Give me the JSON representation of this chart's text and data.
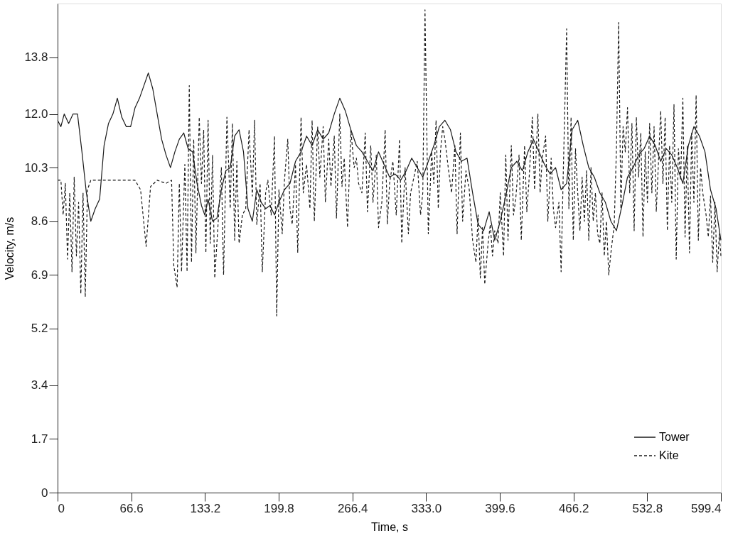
{
  "chart_data": {
    "type": "line",
    "xlabel": "Time, s",
    "ylabel": "Velocity, m/s",
    "xlim": [
      0,
      599.4
    ],
    "xticks": [
      0,
      66.6,
      133.2,
      199.8,
      266.4,
      {
        "value": 333.0,
        "label": "333.0"
      },
      399.6,
      466.2,
      532.8,
      599.4
    ],
    "ylim": [
      0,
      15.5
    ],
    "yticks": [
      0,
      1.7,
      3.4,
      5.2,
      6.9,
      8.6,
      10.3,
      {
        "value": 12.0,
        "label": "12.0"
      },
      13.8
    ],
    "grid": false,
    "legend": "bottom right",
    "marker": "none",
    "series": [
      {
        "name": "Tower",
        "color": "#1a1a1a",
        "line_style": "solid",
        "x": [
          0,
          3,
          6,
          10,
          14,
          18,
          22,
          26,
          30,
          34,
          38,
          42,
          46,
          50,
          54,
          58,
          62,
          66,
          70,
          74,
          78,
          82,
          86,
          90,
          94,
          98,
          102,
          106,
          110,
          114,
          118,
          122,
          126,
          130,
          133,
          136,
          140,
          144,
          148,
          152,
          156,
          160,
          164,
          168,
          172,
          176,
          180,
          184,
          188,
          192,
          196,
          200,
          205,
          210,
          215,
          220,
          225,
          230,
          235,
          240,
          245,
          250,
          255,
          260,
          265,
          270,
          275,
          280,
          285,
          290,
          295,
          300,
          305,
          310,
          315,
          320,
          325,
          330,
          335,
          340,
          345,
          350,
          355,
          360,
          365,
          370,
          375,
          380,
          385,
          390,
          395,
          400,
          405,
          410,
          415,
          420,
          425,
          430,
          435,
          440,
          445,
          450,
          455,
          460,
          465,
          470,
          475,
          480,
          485,
          490,
          495,
          500,
          505,
          510,
          515,
          520,
          525,
          530,
          535,
          540,
          545,
          550,
          555,
          560,
          565,
          570,
          575,
          580,
          585,
          590,
          595,
          599.4
        ],
        "values": [
          11.8,
          11.6,
          12.0,
          11.7,
          12.0,
          12.0,
          10.8,
          9.5,
          8.6,
          9.0,
          9.3,
          11.0,
          11.7,
          12.0,
          12.5,
          11.9,
          11.6,
          11.6,
          12.2,
          12.5,
          12.9,
          13.3,
          12.8,
          12.0,
          11.2,
          10.7,
          10.3,
          10.8,
          11.2,
          11.4,
          10.9,
          10.8,
          9.8,
          9.1,
          8.8,
          9.3,
          8.6,
          8.7,
          9.6,
          10.2,
          10.3,
          11.3,
          11.5,
          10.8,
          9.0,
          8.6,
          9.6,
          9.2,
          9.0,
          9.1,
          8.8,
          9.2,
          9.6,
          9.8,
          10.5,
          10.8,
          11.3,
          11.0,
          11.5,
          11.2,
          11.4,
          12.0,
          12.5,
          12.1,
          11.5,
          11.0,
          10.8,
          10.5,
          10.2,
          10.8,
          10.4,
          10.0,
          10.1,
          9.9,
          10.2,
          10.6,
          10.3,
          10.0,
          10.5,
          11.0,
          11.6,
          11.8,
          11.5,
          10.8,
          10.5,
          10.6,
          9.5,
          8.5,
          8.3,
          8.9,
          8.0,
          8.6,
          9.4,
          10.3,
          10.5,
          10.2,
          10.8,
          11.2,
          10.8,
          10.4,
          10.1,
          10.3,
          9.6,
          9.8,
          11.5,
          11.8,
          11.0,
          10.3,
          10.0,
          9.5,
          9.2,
          8.6,
          8.3,
          9.1,
          10.0,
          10.3,
          10.7,
          10.9,
          11.3,
          11.0,
          10.5,
          10.9,
          10.7,
          10.3,
          9.8,
          11.0,
          11.6,
          11.3,
          10.8,
          9.6,
          9.0,
          8.0
        ]
      },
      {
        "name": "Kite",
        "color": "#1a1a1a",
        "line_style": "dashed",
        "x": [
          0,
          3,
          5,
          7,
          9,
          11,
          13,
          15,
          17,
          19,
          21,
          23,
          25,
          27,
          30,
          40,
          50,
          60,
          70,
          75,
          80,
          84,
          90,
          98,
          103,
          105,
          108,
          110,
          112,
          115,
          117,
          119,
          121,
          123,
          125,
          128,
          130,
          132,
          134,
          136,
          138,
          140,
          142,
          145,
          148,
          150,
          153,
          156,
          158,
          160,
          162,
          164,
          167,
          170,
          173,
          176,
          178,
          180,
          183,
          185,
          188,
          190,
          193,
          196,
          198,
          200,
          203,
          205,
          208,
          210,
          212,
          215,
          217,
          220,
          222,
          225,
          228,
          230,
          232,
          235,
          237,
          240,
          242,
          245,
          247,
          250,
          252,
          255,
          257,
          259,
          262,
          265,
          268,
          270,
          272,
          275,
          278,
          280,
          283,
          285,
          288,
          290,
          293,
          296,
          298,
          300,
          303,
          306,
          309,
          311,
          314,
          317,
          319,
          322,
          325,
          328,
          330,
          332,
          335,
          338,
          340,
          342,
          344,
          346,
          348,
          350,
          353,
          356,
          359,
          361,
          364,
          366,
          369,
          372,
          375,
          378,
          380,
          382,
          384,
          386,
          389,
          391,
          393,
          395,
          398,
          400,
          403,
          405,
          407,
          410,
          412,
          414,
          417,
          419,
          422,
          424,
          426,
          429,
          431,
          434,
          436,
          438,
          441,
          443,
          446,
          448,
          450,
          453,
          455,
          457,
          460,
          462,
          464,
          466,
          468,
          470,
          472,
          474,
          476,
          478,
          480,
          482,
          484,
          486,
          488,
          490,
          492,
          494,
          496,
          498,
          500,
          503,
          505,
          507,
          509,
          511,
          513,
          515,
          517,
          519,
          521,
          523,
          525,
          527,
          529,
          531,
          533,
          535,
          537,
          539,
          541,
          543,
          545,
          547,
          549,
          551,
          553,
          555,
          557,
          559,
          561,
          563,
          565,
          567,
          569,
          571,
          573,
          575,
          577,
          579,
          581,
          583,
          586,
          588,
          590,
          592,
          594,
          596,
          598,
          599.4
        ],
        "values": [
          9.9,
          9.9,
          8.8,
          9.8,
          7.4,
          9.5,
          7.0,
          10.0,
          7.5,
          9.2,
          6.3,
          9.5,
          6.2,
          9.6,
          9.9,
          9.9,
          9.9,
          9.9,
          9.9,
          9.6,
          7.8,
          9.7,
          9.9,
          9.8,
          9.9,
          7.2,
          6.5,
          9.8,
          7.0,
          10.4,
          7.0,
          12.9,
          7.3,
          11.2,
          7.6,
          11.9,
          9.8,
          11.5,
          7.6,
          11.8,
          7.9,
          10.7,
          6.8,
          8.5,
          10.3,
          6.9,
          11.9,
          9.0,
          11.7,
          8.0,
          10.5,
          7.9,
          8.8,
          9.0,
          11.5,
          9.4,
          11.8,
          8.5,
          9.8,
          7.0,
          9.5,
          9.9,
          8.8,
          11.3,
          5.6,
          9.6,
          8.2,
          9.9,
          11.2,
          9.0,
          8.5,
          10.4,
          7.6,
          11.9,
          9.5,
          10.4,
          9.0,
          11.8,
          8.6,
          11.6,
          10.0,
          11.6,
          9.2,
          11.2,
          9.7,
          11.3,
          8.7,
          12.0,
          9.7,
          10.6,
          8.4,
          11.5,
          10.3,
          10.6,
          9.8,
          9.5,
          11.4,
          8.9,
          11.0,
          9.2,
          10.7,
          8.4,
          9.2,
          11.5,
          8.5,
          9.8,
          10.5,
          8.8,
          11.2,
          7.9,
          10.3,
          8.2,
          9.5,
          10.0,
          10.5,
          8.8,
          9.5,
          15.3,
          8.2,
          10.8,
          9.8,
          11.8,
          9.0,
          10.8,
          11.6,
          11.2,
          10.3,
          9.5,
          11.0,
          8.2,
          11.4,
          8.6,
          10.2,
          9.6,
          8.0,
          7.3,
          8.8,
          6.8,
          8.4,
          6.6,
          7.9,
          8.5,
          7.5,
          8.3,
          7.9,
          9.5,
          7.5,
          10.7,
          8.0,
          11.0,
          8.8,
          9.3,
          10.7,
          8.0,
          11.0,
          8.9,
          9.9,
          11.9,
          9.6,
          12.0,
          9.5,
          10.6,
          11.3,
          8.6,
          10.6,
          9.0,
          8.4,
          9.2,
          7.0,
          10.2,
          14.7,
          9.0,
          11.9,
          8.0,
          10.9,
          9.5,
          8.3,
          10.0,
          8.6,
          10.2,
          8.0,
          10.3,
          8.6,
          9.5,
          8.2,
          7.9,
          9.5,
          7.5,
          8.6,
          6.9,
          7.6,
          8.5,
          10.9,
          14.9,
          9.0,
          11.6,
          10.8,
          12.2,
          9.5,
          11.7,
          8.3,
          11.9,
          10.0,
          11.4,
          8.1,
          10.8,
          9.2,
          11.7,
          9.5,
          11.6,
          8.9,
          10.5,
          12.1,
          9.8,
          11.9,
          8.3,
          11.0,
          9.2,
          12.3,
          7.4,
          10.9,
          9.9,
          12.5,
          8.1,
          11.0,
          7.6,
          11.4,
          9.2,
          12.6,
          8.0,
          10.3,
          9.5,
          8.8,
          8.1,
          9.4,
          7.3,
          9.2,
          7.0,
          8.2,
          7.5
        ]
      }
    ]
  }
}
